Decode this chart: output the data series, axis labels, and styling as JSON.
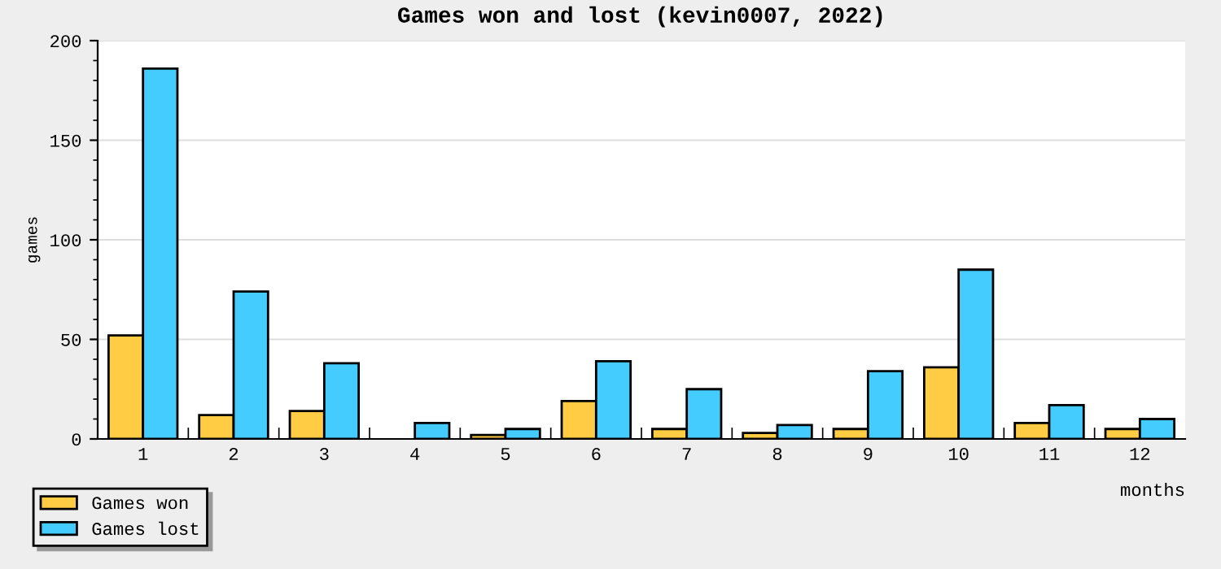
{
  "chart_data": {
    "type": "bar",
    "title": "Games won and lost (kevin0007, 2022)",
    "xlabel": "months",
    "ylabel": "games",
    "categories": [
      "1",
      "2",
      "3",
      "4",
      "5",
      "6",
      "7",
      "8",
      "9",
      "10",
      "11",
      "12"
    ],
    "series": [
      {
        "name": "Games won",
        "color": "#ffcc44",
        "values": [
          52,
          12,
          14,
          0,
          2,
          19,
          5,
          3,
          5,
          36,
          8,
          5
        ]
      },
      {
        "name": "Games lost",
        "color": "#44ccff",
        "values": [
          186,
          74,
          38,
          8,
          5,
          39,
          25,
          7,
          34,
          85,
          17,
          10
        ]
      }
    ],
    "ylim": [
      0,
      200
    ],
    "yticks": [
      0,
      50,
      100,
      150,
      200
    ],
    "grid": "y",
    "legend": "bottom left"
  }
}
